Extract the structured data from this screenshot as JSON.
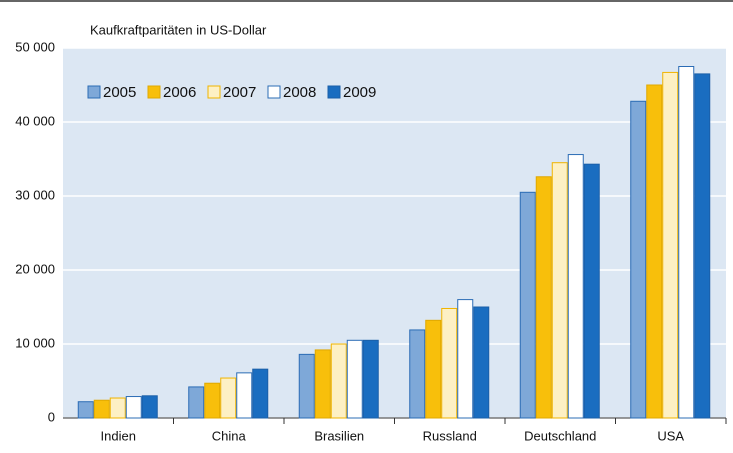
{
  "chart_data": {
    "type": "bar",
    "title": "Kaufkraftparitäten in US-Dollar",
    "categories": [
      "Indien",
      "China",
      "Brasilien",
      "Russland",
      "Deutschland",
      "USA"
    ],
    "series": [
      {
        "name": "2005",
        "color": "#7ea8d8",
        "edge": "#2b6cb5",
        "values": [
          2200,
          4200,
          8600,
          11900,
          30500,
          42800
        ]
      },
      {
        "name": "2006",
        "color": "#f8bf0b",
        "edge": "#e0a800",
        "values": [
          2400,
          4700,
          9200,
          13200,
          32600,
          45000
        ]
      },
      {
        "name": "2007",
        "color": "#fdf0c4",
        "edge": "#f0b400",
        "values": [
          2700,
          5400,
          10000,
          14800,
          34500,
          46700
        ]
      },
      {
        "name": "2008",
        "color": "#ffffff",
        "edge": "#2b6cb5",
        "values": [
          2900,
          6100,
          10500,
          16000,
          35600,
          47500
        ]
      },
      {
        "name": "2009",
        "color": "#1a6dc0",
        "edge": "#1a5fa8",
        "values": [
          3000,
          6600,
          10500,
          15000,
          34300,
          46500
        ]
      }
    ],
    "ylim": [
      0,
      50000
    ],
    "yticks": [
      0,
      {
        "value": 10000,
        "label": "10 000"
      },
      {
        "value": 20000,
        "label": "20 000"
      },
      {
        "value": 30000,
        "label": "30 000"
      },
      {
        "value": 40000,
        "label": "40 000"
      },
      {
        "value": 50000,
        "label": "50 000"
      }
    ],
    "grid": true,
    "legend": "upper left",
    "background": "#dce7f3"
  }
}
